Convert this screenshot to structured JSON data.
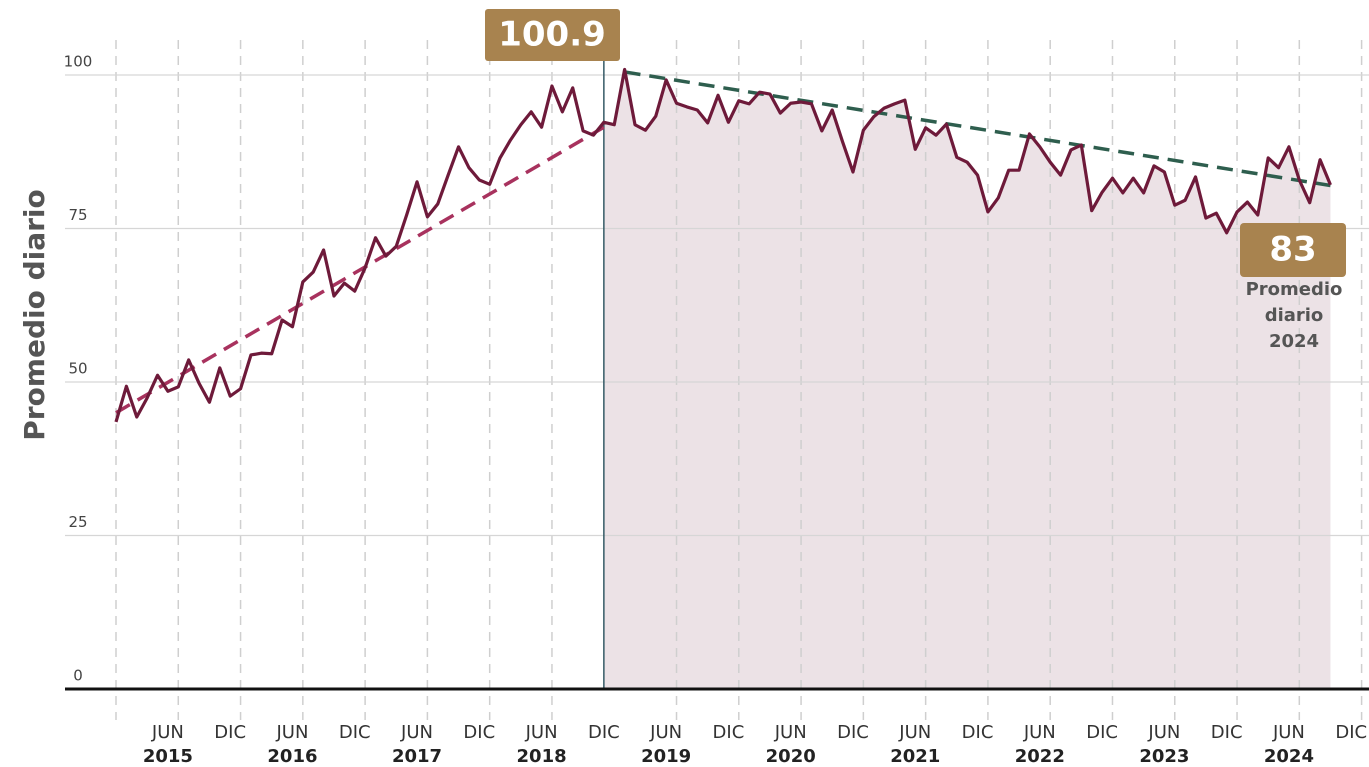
{
  "chart_data": {
    "type": "line",
    "y_label": "Promedio diario",
    "categories": [
      null,
      null,
      null,
      null,
      null,
      "JUN",
      null,
      null,
      null,
      null,
      null,
      "DIC",
      null,
      null,
      null,
      null,
      null,
      "JUN",
      null,
      null,
      null,
      null,
      null,
      "DIC",
      null,
      null,
      null,
      null,
      null,
      "JUN",
      null,
      null,
      null,
      null,
      null,
      "DIC",
      null,
      null,
      null,
      null,
      null,
      "JUN",
      null,
      null,
      null,
      null,
      null,
      "DIC",
      null,
      null,
      null,
      null,
      null,
      "JUN",
      null,
      null,
      null,
      null,
      null,
      "DIC",
      null,
      null,
      null,
      null,
      null,
      "JUN",
      null,
      null,
      null,
      null,
      null,
      "DIC",
      null,
      null,
      null,
      null,
      null,
      "JUN",
      null,
      null,
      null,
      null,
      null,
      "DIC",
      null,
      null,
      null,
      null,
      null,
      "JUN",
      null,
      null,
      null,
      null,
      null,
      "DIC",
      null,
      null,
      null,
      null,
      null,
      "JUN",
      null,
      null,
      null,
      null,
      null,
      "DIC",
      null,
      null,
      null,
      null,
      null,
      "JUN",
      null,
      null,
      null,
      null,
      null,
      "DIC"
    ],
    "years": [
      "2015",
      "2016",
      "2017",
      "2018",
      "2019",
      "2020",
      "2021",
      "2022",
      "2023",
      "2024"
    ],
    "series": [
      {
        "name": "Promedio diario",
        "color": "#6e1a3a",
        "values": [
          43.5,
          49.3,
          44.3,
          47.4,
          51.1,
          48.5,
          49.2,
          53.6,
          49.8,
          46.7,
          52.3,
          47.7,
          48.9,
          54.4,
          54.7,
          54.6,
          60.1,
          59.0,
          66.3,
          67.9,
          71.5,
          64.0,
          66.1,
          64.8,
          68.6,
          73.5,
          70.5,
          72.1,
          77.2,
          82.6,
          76.9,
          79.0,
          83.7,
          88.3,
          84.9,
          82.9,
          82.2,
          86.5,
          89.4,
          91.9,
          94.0,
          91.5,
          98.2,
          94.0,
          97.9,
          90.9,
          90.2,
          92.3,
          91.9,
          100.9,
          91.9,
          91.0,
          93.3,
          99.2,
          95.4,
          94.8,
          94.3,
          92.2,
          96.7,
          92.3,
          95.8,
          95.3,
          97.2,
          96.9,
          93.8,
          95.4,
          95.6,
          95.3,
          90.9,
          94.3,
          89.1,
          84.2,
          91.0,
          93.2,
          94.6,
          95.3,
          95.9,
          87.9,
          91.4,
          90.2,
          92.0,
          86.6,
          85.8,
          83.7,
          77.7,
          80.0,
          84.5,
          84.5,
          90.4,
          88.3,
          85.8,
          83.7,
          87.8,
          88.6,
          77.9,
          80.9,
          83.2,
          80.8,
          83.2,
          80.8,
          85.2,
          84.2,
          78.8,
          79.6,
          83.4,
          76.7,
          77.5,
          74.3,
          77.7,
          79.3,
          77.2,
          86.5,
          84.9,
          88.3,
          82.9,
          79.2,
          86.2,
          82.1,
          null,
          null
        ]
      }
    ],
    "trend_lines": [
      {
        "color": "#a8325e",
        "x": [
          0,
          47
        ],
        "values": [
          45,
          91.5
        ]
      },
      {
        "color": "#2e5e4e",
        "x": [
          49,
          117
        ],
        "values": [
          100.5,
          82
        ]
      }
    ],
    "shaded_from": 47,
    "shade_color": "#ece2e6",
    "peak_label": 100.9,
    "latest_label": 83,
    "latest_caption": [
      "Promedio",
      "diario",
      "2024"
    ],
    "label_box_color": "#a8834f",
    "ylim": [
      0,
      100
    ],
    "yticks": [
      0,
      25,
      50,
      75,
      100
    ],
    "grid": true
  }
}
